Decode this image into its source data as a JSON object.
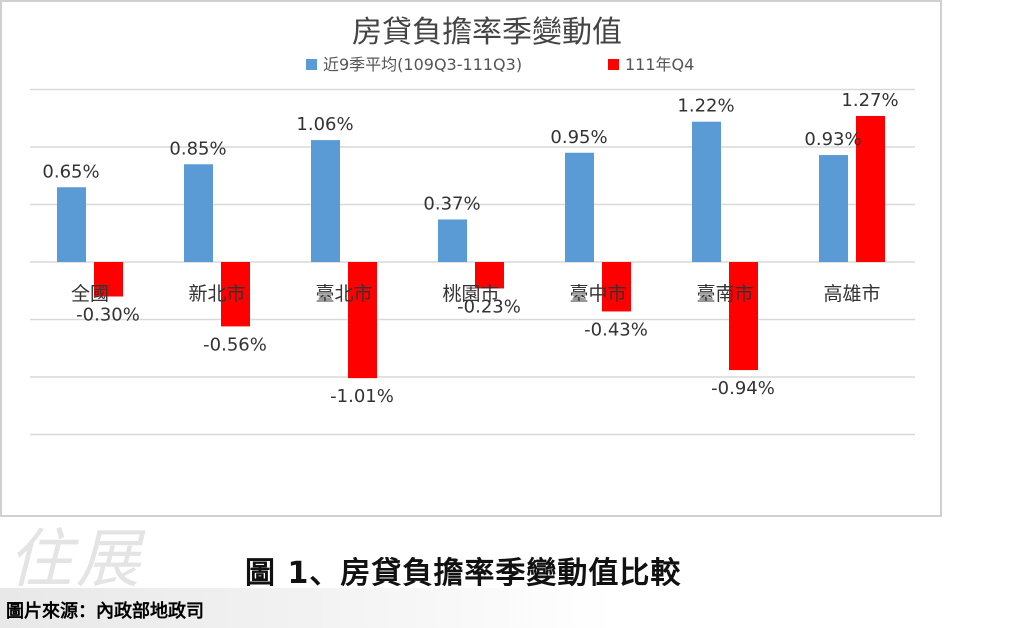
{
  "chart_data": {
    "type": "bar",
    "title": "房貸負擔率季變動值",
    "categories": [
      "全國",
      "新北市",
      "臺北市",
      "桃園市",
      "臺中市",
      "臺南市",
      "高雄市"
    ],
    "series": [
      {
        "name": "近9季平均(109Q3-111Q3)",
        "color": "#5b9bd5",
        "values": [
          0.65,
          0.85,
          1.06,
          0.37,
          0.95,
          1.22,
          0.93
        ],
        "labels": [
          "0.65%",
          "0.85%",
          "1.06%",
          "0.37%",
          "0.95%",
          "1.22%",
          "0.93%"
        ]
      },
      {
        "name": "111年Q4",
        "color": "#ff0000",
        "values": [
          -0.3,
          -0.56,
          -1.01,
          -0.23,
          -0.43,
          -0.94,
          1.27
        ],
        "labels": [
          "-0.30%",
          "-0.56%",
          "-1.01%",
          "-0.23%",
          "-0.43%",
          "-0.94%",
          "1.27%"
        ]
      }
    ],
    "ylim": [
      -1.5,
      1.5
    ],
    "grid": true,
    "legend": "top"
  },
  "caption": "圖 1、房貸負擔率季變動值比較",
  "source": "圖片來源：內政部地政司",
  "watermark": "住展"
}
